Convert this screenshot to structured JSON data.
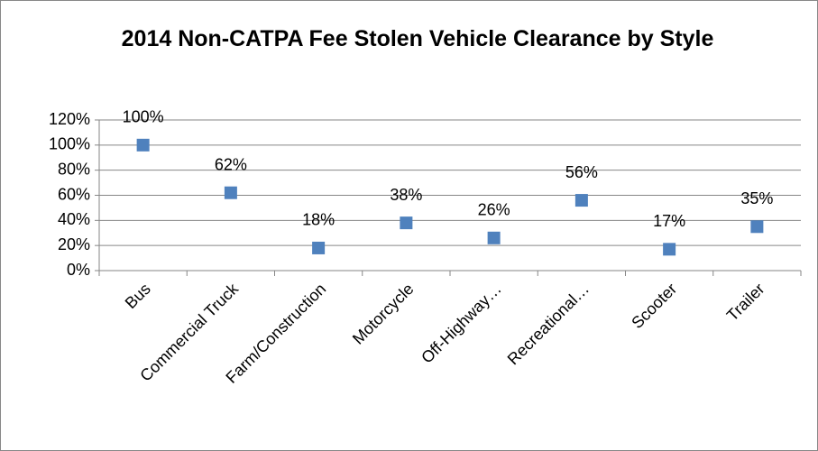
{
  "chart_data": {
    "type": "scatter",
    "title": "2014 Non-CATPA Fee Stolen Vehicle Clearance by Style",
    "categories": [
      "Bus",
      "Commercial Truck",
      "Farm/Construction",
      "Motorcycle",
      "Off-Highway…",
      "Recreational…",
      "Scooter",
      "Trailer"
    ],
    "values": [
      100,
      62,
      18,
      38,
      26,
      56,
      17,
      35
    ],
    "value_labels": [
      "100%",
      "62%",
      "18%",
      "38%",
      "26%",
      "56%",
      "17%",
      "35%"
    ],
    "color": "#4f81bd",
    "ylim": [
      0,
      120
    ],
    "yticks": [
      {
        "value": 0,
        "label": "0%"
      },
      {
        "value": 20,
        "label": "20%"
      },
      {
        "value": 40,
        "label": "40%"
      },
      {
        "value": 60,
        "label": "60%"
      },
      {
        "value": 80,
        "label": "80%"
      },
      {
        "value": 100,
        "label": "100%"
      },
      {
        "value": 120,
        "label": "120%"
      }
    ],
    "grid": true
  }
}
